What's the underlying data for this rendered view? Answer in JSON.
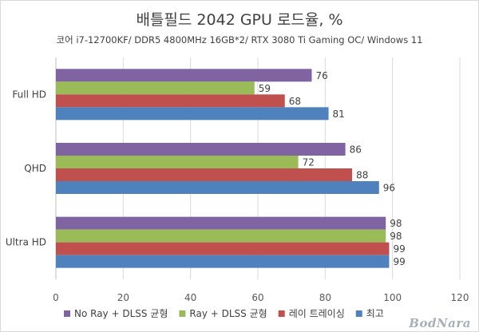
{
  "chart_data": {
    "type": "bar",
    "orientation": "horizontal",
    "title": "배틀필드 2042 GPU 로드율, %",
    "subtitle": "코어 i7-12700KF/ DDR5 4800MHz 16GB*2/ RTX 3080 Ti Gaming OC/ Windows 11",
    "categories": [
      "Full HD",
      "QHD",
      "Ultra HD"
    ],
    "series": [
      {
        "name": "No Ray + DLSS 균형",
        "color": "#8064a2",
        "values": [
          76,
          86,
          98
        ]
      },
      {
        "name": "Ray + DLSS 균형",
        "color": "#9bbb59",
        "values": [
          59,
          72,
          98
        ]
      },
      {
        "name": "레이 트레이싱",
        "color": "#c0504d",
        "values": [
          68,
          88,
          99
        ]
      },
      {
        "name": "최고",
        "color": "#4f81bd",
        "values": [
          81,
          96,
          99
        ]
      }
    ],
    "xlim": [
      0,
      120
    ],
    "xticks": [
      "0",
      "20",
      "40",
      "60",
      "80",
      "100",
      "120"
    ],
    "grid": true,
    "legend_position": "bottom"
  },
  "watermark": "BodNara"
}
